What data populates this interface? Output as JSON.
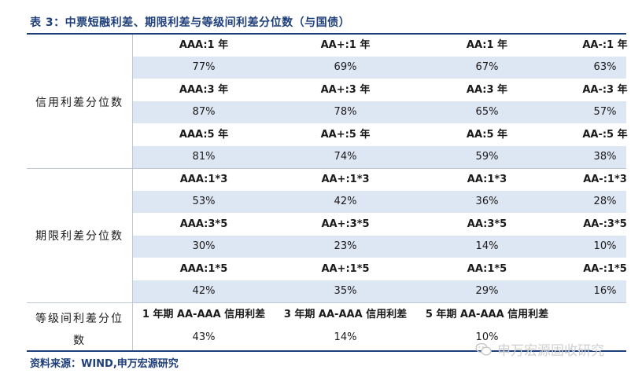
{
  "title": "表 3：中票短融利差、期限利差与等级间利差分位数（与国债）",
  "sections": {
    "credit": {
      "label": "信用利差分位数",
      "groups": [
        {
          "headers": [
            "AAA:1 年",
            "AA+:1 年",
            "AA:1 年",
            "AA-:1 年"
          ],
          "values": [
            "77%",
            "69%",
            "67%",
            "63%"
          ]
        },
        {
          "headers": [
            "AAA:3 年",
            "AA+:3 年",
            "AA:3 年",
            "AA-:3 年"
          ],
          "values": [
            "87%",
            "78%",
            "65%",
            "57%"
          ]
        },
        {
          "headers": [
            "AAA:5 年",
            "AA+:5 年",
            "AA:5 年",
            "AA-:5 年"
          ],
          "values": [
            "81%",
            "74%",
            "59%",
            "38%"
          ]
        }
      ]
    },
    "term": {
      "label": "期限利差分位数",
      "groups": [
        {
          "headers": [
            "AAA:1*3",
            "AA+:1*3",
            "AA:1*3",
            "AA-:1*3"
          ],
          "values": [
            "53%",
            "42%",
            "36%",
            "28%"
          ]
        },
        {
          "headers": [
            "AAA:3*5",
            "AA+:3*5",
            "AA:3*5",
            "AA-:3*5"
          ],
          "values": [
            "30%",
            "23%",
            "14%",
            "10%"
          ]
        },
        {
          "headers": [
            "AAA:1*5",
            "AA+:1*5",
            "AA:1*5",
            "AA-:1*5"
          ],
          "values": [
            "42%",
            "35%",
            "29%",
            "16%"
          ]
        }
      ]
    },
    "grade": {
      "label_line1": "等级间利差分位",
      "label_line2": "数",
      "headers": [
        "1 年期 AA-AAA 信用利差",
        "3 年期 AA-AAA 信用利差",
        "5 年期 AA-AAA 信用利差"
      ],
      "values": [
        "43%",
        "14%",
        "10%"
      ]
    }
  },
  "source": "资料来源：WIND,申万宏源研究",
  "watermark": "申万宏源固收研究",
  "colors": {
    "accent": "#1f3f7a",
    "shade": "#dde6f3"
  }
}
